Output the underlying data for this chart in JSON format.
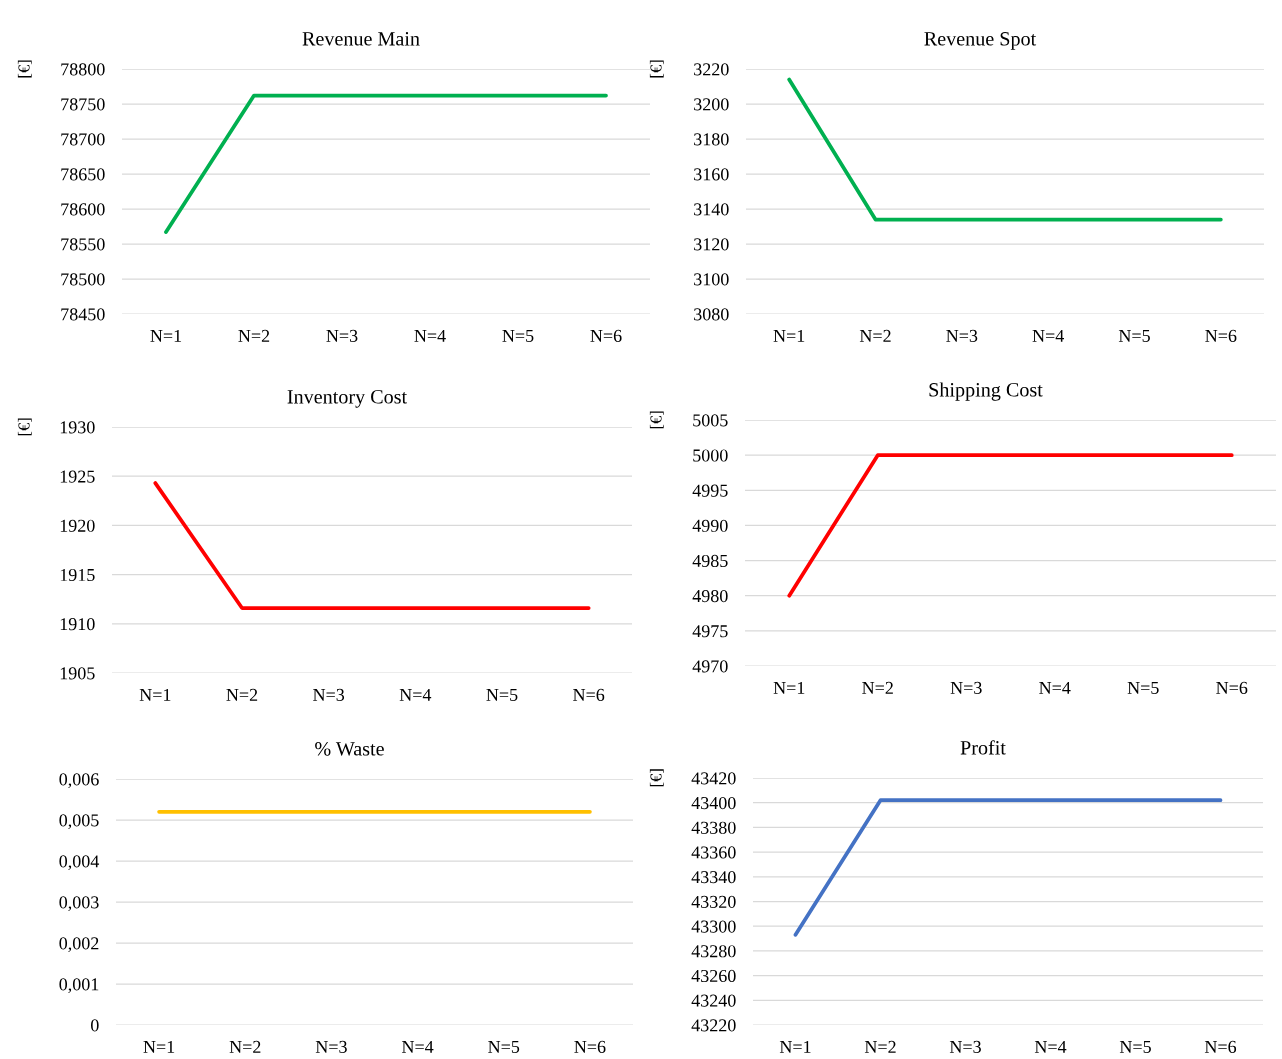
{
  "chart_data": [
    {
      "type": "line",
      "title": "Revenue Main",
      "ylabel": "[€]",
      "categories": [
        "N=1",
        "N=2",
        "N=3",
        "N=4",
        "N=5",
        "N=6"
      ],
      "series": [
        {
          "color": "#00b050",
          "values": [
            78567,
            78762,
            78762,
            78762,
            78762,
            78762
          ]
        }
      ],
      "ylim": [
        78450,
        78800
      ],
      "yticks": [
        78450,
        78500,
        78550,
        78600,
        78650,
        78700,
        78750,
        78800
      ],
      "grid": "y"
    },
    {
      "type": "line",
      "title": "Revenue Spot",
      "ylabel": "[€]",
      "categories": [
        "N=1",
        "N=2",
        "N=3",
        "N=4",
        "N=5",
        "N=6"
      ],
      "series": [
        {
          "color": "#00b050",
          "values": [
            3214,
            3134,
            3134,
            3134,
            3134,
            3134
          ]
        }
      ],
      "ylim": [
        3080,
        3220
      ],
      "yticks": [
        3080,
        3100,
        3120,
        3140,
        3160,
        3180,
        3200,
        3220
      ],
      "grid": "y"
    },
    {
      "type": "line",
      "title": "Inventory Cost",
      "ylabel": "[€]",
      "categories": [
        "N=1",
        "N=2",
        "N=3",
        "N=4",
        "N=5",
        "N=6"
      ],
      "series": [
        {
          "color": "#ff0000",
          "values": [
            1924.3,
            1911.6,
            1911.6,
            1911.6,
            1911.6,
            1911.6
          ]
        }
      ],
      "ylim": [
        1905,
        1930
      ],
      "yticks": [
        1905,
        1910,
        1915,
        1920,
        1925,
        1930
      ],
      "grid": "y"
    },
    {
      "type": "line",
      "title": "Shipping Cost",
      "ylabel": "[€]",
      "categories": [
        "N=1",
        "N=2",
        "N=3",
        "N=4",
        "N=5",
        "N=6"
      ],
      "series": [
        {
          "color": "#ff0000",
          "values": [
            4980,
            5000,
            5000,
            5000,
            5000,
            5000
          ]
        }
      ],
      "ylim": [
        4970,
        5005
      ],
      "yticks": [
        4970,
        4975,
        4980,
        4985,
        4990,
        4995,
        5000,
        5005
      ],
      "grid": "y"
    },
    {
      "type": "line",
      "title": "% Waste",
      "categories": [
        "N=1",
        "N=2",
        "N=3",
        "N=4",
        "N=5",
        "N=6"
      ],
      "series": [
        {
          "color": "#ffc000",
          "values": [
            0.0052,
            0.0052,
            0.0052,
            0.0052,
            0.0052,
            0.0052
          ]
        }
      ],
      "ylim": [
        0,
        0.006
      ],
      "yticks": [
        0,
        {
          "value": 0.001,
          "label": "0,001"
        },
        {
          "value": 0.002,
          "label": "0,002"
        },
        {
          "value": 0.003,
          "label": "0,003"
        },
        {
          "value": 0.004,
          "label": "0,004"
        },
        {
          "value": 0.005,
          "label": "0,005"
        },
        {
          "value": 0.006,
          "label": "0,006"
        }
      ],
      "grid": "y"
    },
    {
      "type": "line",
      "title": "Profit",
      "ylabel": "[€]",
      "categories": [
        "N=1",
        "N=2",
        "N=3",
        "N=4",
        "N=5",
        "N=6"
      ],
      "series": [
        {
          "color": "#4472c4",
          "values": [
            43293,
            43402,
            43402,
            43402,
            43402,
            43402
          ]
        }
      ],
      "ylim": [
        43220,
        43420
      ],
      "yticks": [
        43220,
        43240,
        43260,
        43280,
        43300,
        43320,
        43340,
        43360,
        43380,
        43400,
        43420
      ],
      "grid": "y"
    }
  ]
}
